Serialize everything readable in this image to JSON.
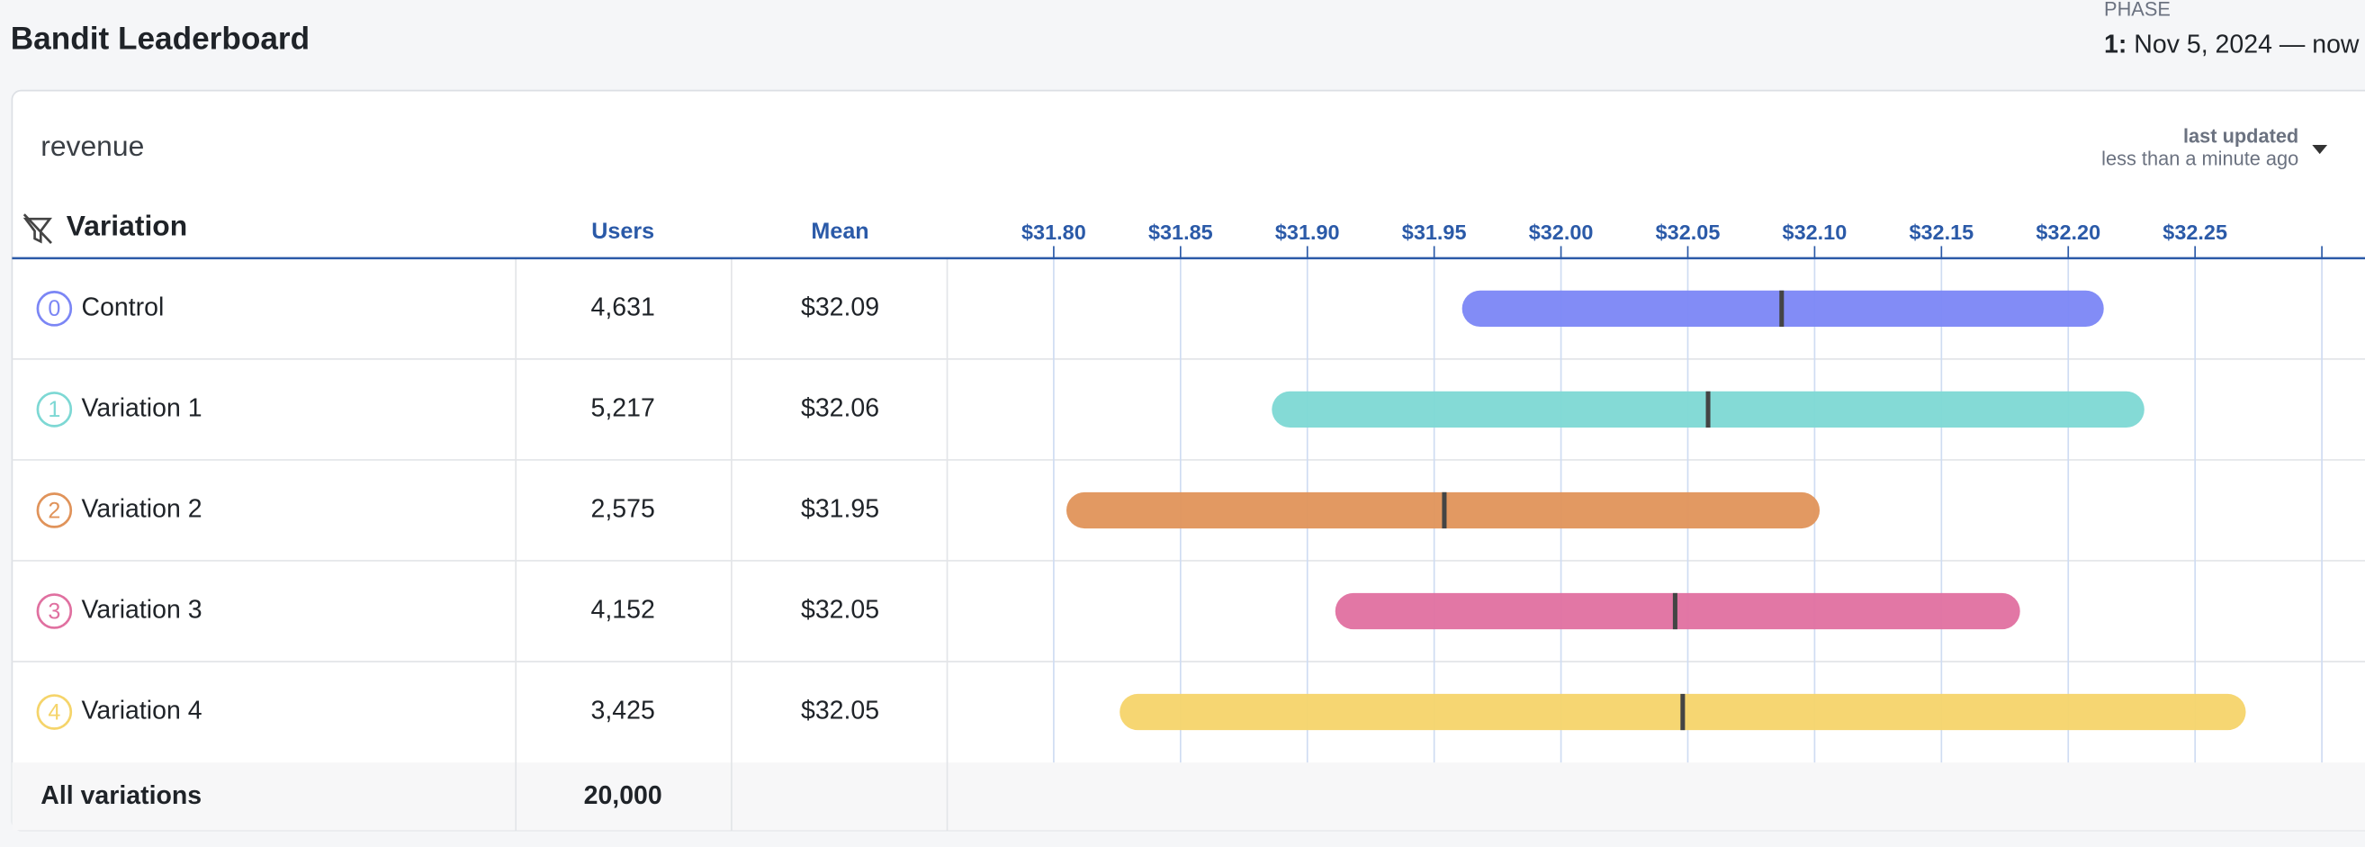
{
  "header": {
    "title": "Bandit Leaderboard",
    "phase_label": "PHASE",
    "phase_number": "1:",
    "phase_dates": "Nov 5, 2024 — now"
  },
  "panel": {
    "metric": "revenue",
    "updated_label": "last updated",
    "updated_time": "less than a minute ago"
  },
  "table": {
    "columns": [
      "Variation",
      "Users",
      "Mean"
    ],
    "rows": [
      {
        "index": "0",
        "name": "Control",
        "users": "4,631",
        "mean": "$32.09",
        "color": "#7b86f5"
      },
      {
        "index": "1",
        "name": "Variation 1",
        "users": "5,217",
        "mean": "$32.06",
        "color": "#7dd8d4"
      },
      {
        "index": "2",
        "name": "Variation 2",
        "users": "2,575",
        "mean": "$31.95",
        "color": "#e0935a"
      },
      {
        "index": "3",
        "name": "Variation 3",
        "users": "4,152",
        "mean": "$32.05",
        "color": "#e070a0"
      },
      {
        "index": "4",
        "name": "Variation 4",
        "users": "3,425",
        "mean": "$32.05",
        "color": "#f5d46a"
      }
    ],
    "total_label": "All variations",
    "total_users": "20,000"
  },
  "chart": {
    "type": "interval",
    "xlim": [
      31.758,
      32.317
    ],
    "xticks": [
      {
        "value": 31.8,
        "label": "$31.80"
      },
      {
        "value": 31.85,
        "label": "$31.85"
      },
      {
        "value": 31.9,
        "label": "$31.90"
      },
      {
        "value": 31.95,
        "label": "$31.95"
      },
      {
        "value": 32.0,
        "label": "$32.00"
      },
      {
        "value": 32.05,
        "label": "$32.05"
      },
      {
        "value": 32.1,
        "label": "$32.10"
      },
      {
        "value": 32.15,
        "label": "$32.15"
      },
      {
        "value": 32.2,
        "label": "$32.20"
      },
      {
        "value": 32.25,
        "label": "$32.25"
      },
      {
        "value": 32.3,
        "label": null
      }
    ],
    "intervals": [
      {
        "low": 31.961,
        "mean": 32.087,
        "high": 32.214
      },
      {
        "low": 31.886,
        "mean": 32.058,
        "high": 32.23
      },
      {
        "low": 31.805,
        "mean": 31.954,
        "high": 32.102
      },
      {
        "low": 31.911,
        "mean": 32.045,
        "high": 32.181
      },
      {
        "low": 31.826,
        "mean": 32.048,
        "high": 32.27
      }
    ]
  }
}
